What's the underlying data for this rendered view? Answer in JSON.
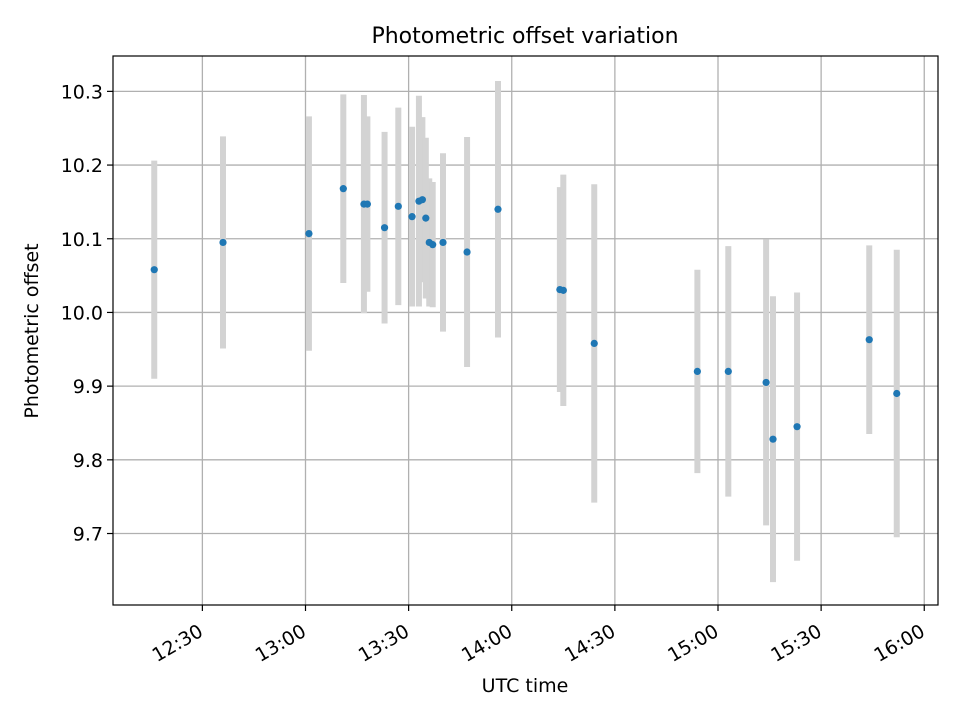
{
  "chart_data": {
    "type": "scatter",
    "title": "Photometric offset variation",
    "xlabel": "UTC time",
    "ylabel": "Photometric offset",
    "xlim": [
      "12:04",
      "16:04"
    ],
    "ylim": [
      9.603,
      10.348
    ],
    "x_ticks": [
      "12:30",
      "13:00",
      "13:30",
      "14:00",
      "14:30",
      "15:00",
      "15:30",
      "16:00"
    ],
    "y_ticks": [
      9.7,
      9.8,
      9.9,
      10.0,
      10.1,
      10.2,
      10.3
    ],
    "grid": true,
    "colors": {
      "point": "#1f77b4",
      "errorbar": "#d3d3d3",
      "grid": "#b0b0b0"
    },
    "series": [
      {
        "points": [
          {
            "x": "12:16",
            "y": 10.058,
            "err": 0.148
          },
          {
            "x": "12:36",
            "y": 10.095,
            "err": 0.144
          },
          {
            "x": "13:01",
            "y": 10.107,
            "err": 0.159
          },
          {
            "x": "13:11",
            "y": 10.168,
            "err": 0.128
          },
          {
            "x": "13:17",
            "y": 10.147,
            "err": 0.148
          },
          {
            "x": "13:18",
            "y": 10.147,
            "err": 0.119
          },
          {
            "x": "13:23",
            "y": 10.115,
            "err": 0.13
          },
          {
            "x": "13:27",
            "y": 10.144,
            "err": 0.134
          },
          {
            "x": "13:31",
            "y": 10.13,
            "err": 0.122
          },
          {
            "x": "13:33",
            "y": 10.151,
            "err": 0.143
          },
          {
            "x": "13:34",
            "y": 10.153,
            "err": 0.112
          },
          {
            "x": "13:35",
            "y": 10.128,
            "err": 0.109
          },
          {
            "x": "13:36",
            "y": 10.095,
            "err": 0.087
          },
          {
            "x": "13:37",
            "y": 10.092,
            "err": 0.085
          },
          {
            "x": "13:40",
            "y": 10.095,
            "err": 0.121
          },
          {
            "x": "13:47",
            "y": 10.082,
            "err": 0.156
          },
          {
            "x": "13:56",
            "y": 10.14,
            "err": 0.174
          },
          {
            "x": "14:14",
            "y": 10.031,
            "err": 0.139
          },
          {
            "x": "14:15",
            "y": 10.03,
            "err": 0.157
          },
          {
            "x": "14:24",
            "y": 9.958,
            "err": 0.216
          },
          {
            "x": "14:54",
            "y": 9.92,
            "err": 0.138
          },
          {
            "x": "15:03",
            "y": 9.92,
            "err": 0.17
          },
          {
            "x": "15:14",
            "y": 9.905,
            "err": 0.194
          },
          {
            "x": "15:16",
            "y": 9.828,
            "err": 0.194
          },
          {
            "x": "15:23",
            "y": 9.845,
            "err": 0.182
          },
          {
            "x": "15:44",
            "y": 9.963,
            "err": 0.128
          },
          {
            "x": "15:52",
            "y": 9.89,
            "err": 0.195
          }
        ]
      }
    ]
  }
}
